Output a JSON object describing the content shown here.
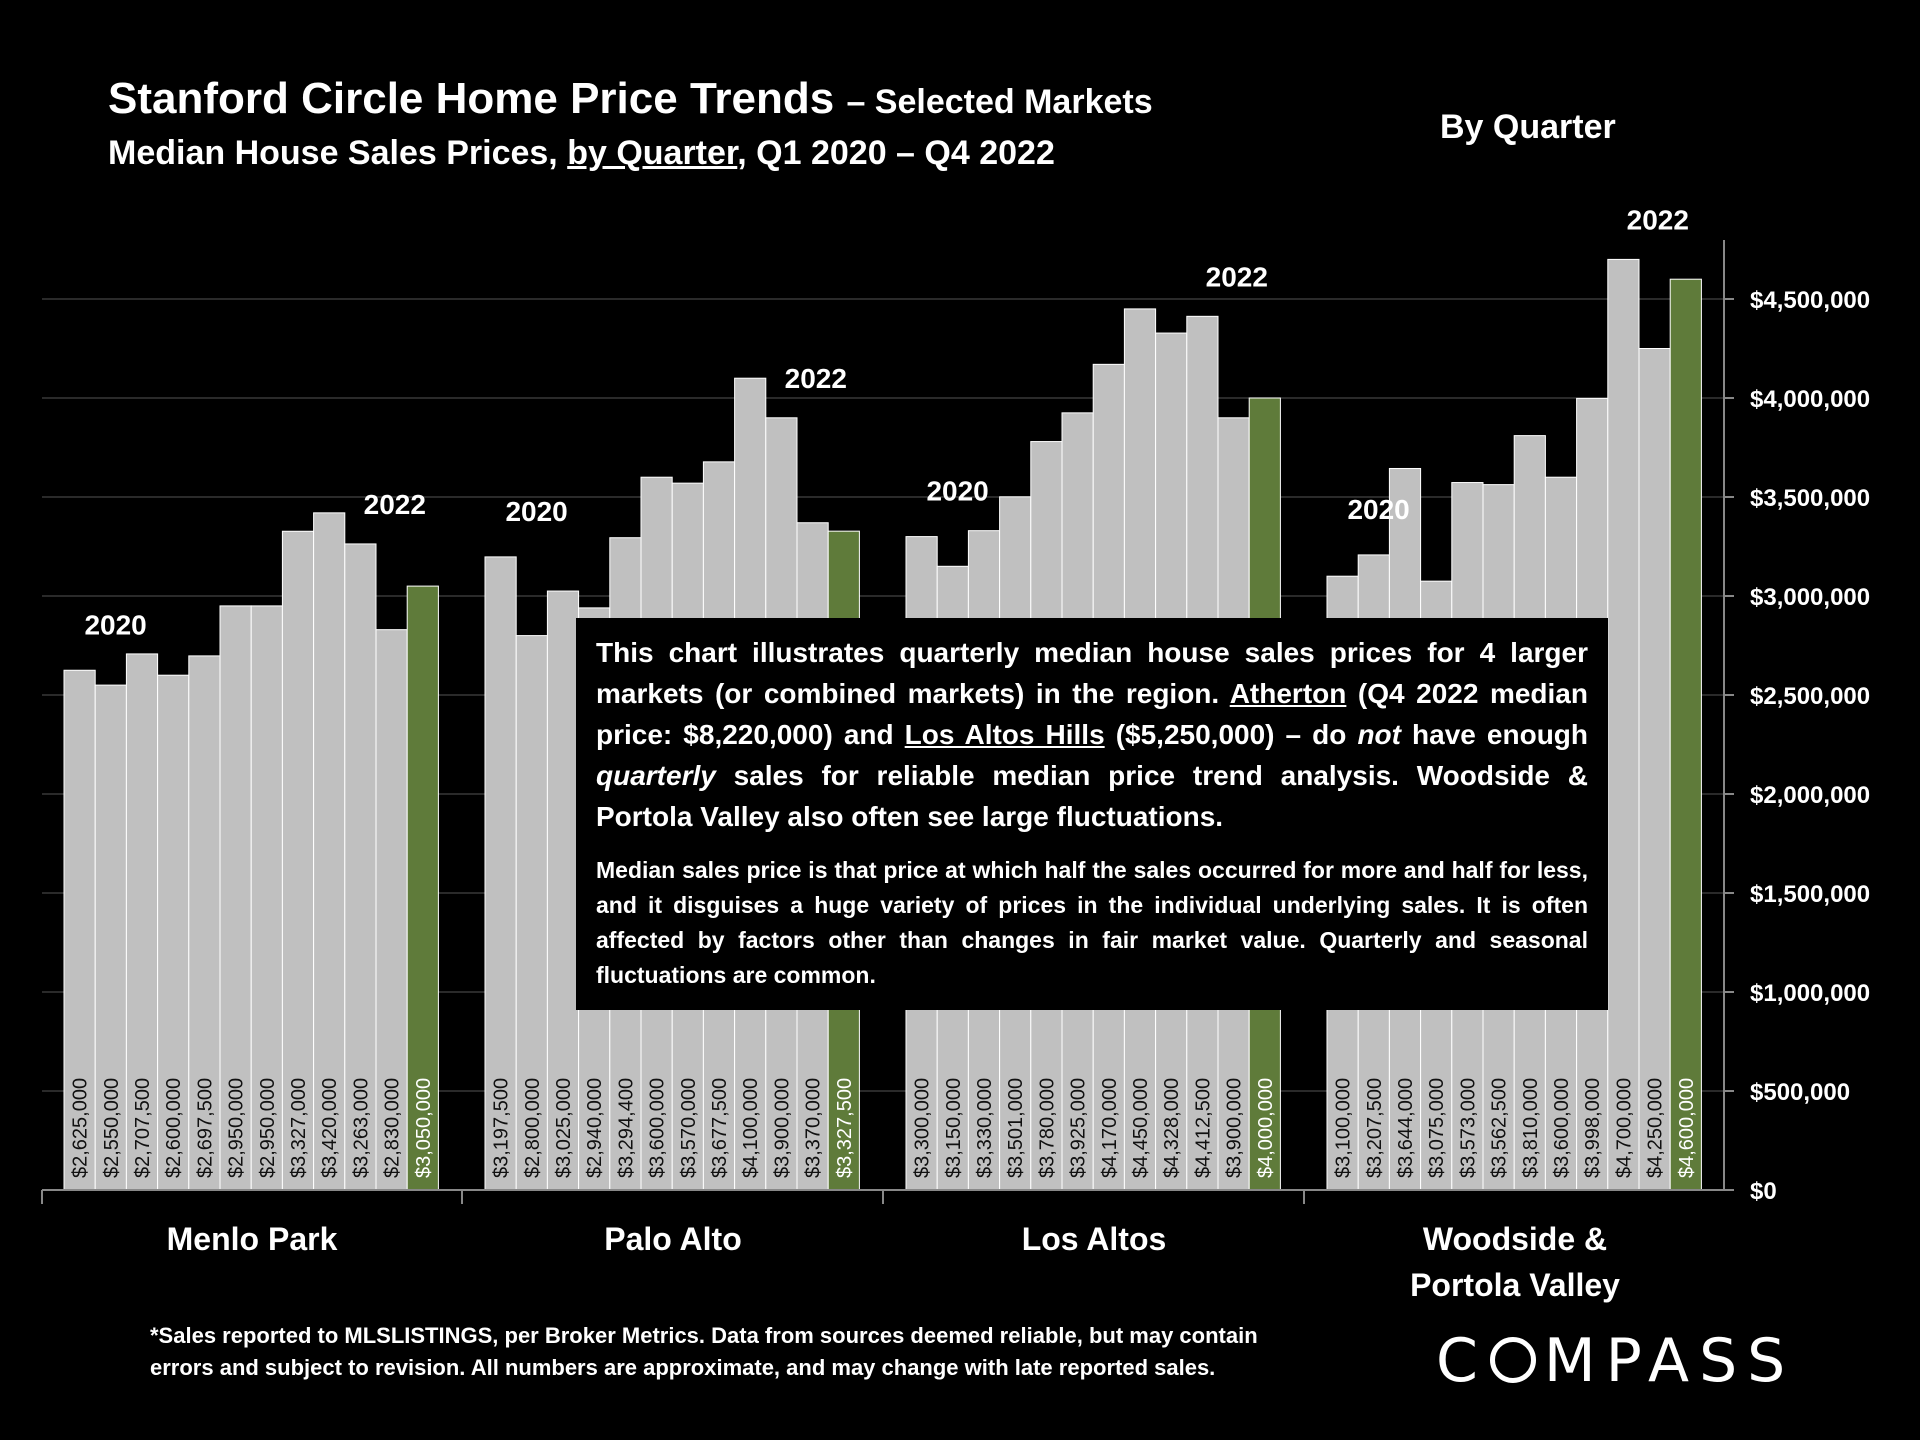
{
  "header": {
    "title_main": "Stanford Circle Home Price Trends",
    "title_suffix": "– Selected Markets",
    "subtitle_pre": "Median House Sales Prices, ",
    "subtitle_link": "by Quarter",
    "subtitle_post": ", Q1 2020 – Q4 2022",
    "by_quarter": "By Quarter"
  },
  "colors": {
    "bar": "#c0c0c0",
    "highlight": "#5f7b3a",
    "background": "#000000",
    "grid": "#444444"
  },
  "chart_data": {
    "type": "bar",
    "yticks": [
      "$0",
      "$500,000",
      "$1,000,000",
      "$1,500,000",
      "$2,000,000",
      "$2,500,000",
      "$3,000,000",
      "$3,500,000",
      "$4,000,000",
      "$4,500,000"
    ],
    "ylim": [
      0,
      4800000
    ],
    "grid": true,
    "groups": [
      {
        "name": "Menlo Park",
        "start_label": "2020",
        "end_label": "2022",
        "values": [
          2625000,
          2550000,
          2707500,
          2600000,
          2697500,
          2950000,
          2950000,
          3327000,
          3420000,
          3263000,
          2830000,
          3050000
        ],
        "labels": [
          "$2,625,000",
          "$2,550,000",
          "$2,707,500",
          "$2,600,000",
          "$2,697,500",
          "$2,950,000",
          "$2,950,000",
          "$3,327,000",
          "$3,420,000",
          "$3,263,000",
          "$2,830,000",
          "$3,050,000"
        ]
      },
      {
        "name": "Palo Alto",
        "start_label": "2020",
        "end_label": "2022",
        "values": [
          3197500,
          2800000,
          3025000,
          2940000,
          3294400,
          3600000,
          3570000,
          3677500,
          4100000,
          3900000,
          3370000,
          3327500
        ],
        "labels": [
          "$3,197,500",
          "$2,800,000",
          "$3,025,000",
          "$2,940,000",
          "$3,294,400",
          "$3,600,000",
          "$3,570,000",
          "$3,677,500",
          "$4,100,000",
          "$3,900,000",
          "$3,370,000",
          "$3,327,500"
        ]
      },
      {
        "name": "Los Altos",
        "start_label": "2020",
        "end_label": "2022",
        "values": [
          3300000,
          3150000,
          3330000,
          3501000,
          3780000,
          3925000,
          4170000,
          4450000,
          4328000,
          4412500,
          3900000,
          4000000
        ],
        "labels": [
          "$3,300,000",
          "$3,150,000",
          "$3,330,000",
          "$3,501,000",
          "$3,780,000",
          "$3,925,000",
          "$4,170,000",
          "$4,450,000",
          "$4,328,000",
          "$4,412,500",
          "$3,900,000",
          "$4,000,000"
        ]
      },
      {
        "name": "Woodside &\nPortola Valley",
        "start_label": "2020",
        "end_label": "2022",
        "values": [
          3100000,
          3207500,
          3644000,
          3075000,
          3573000,
          3562500,
          3810000,
          3600000,
          3998000,
          4700000,
          4250000,
          4600000
        ],
        "labels": [
          "$3,100,000",
          "$3,207,500",
          "$3,644,000",
          "$3,075,000",
          "$3,573,000",
          "$3,562,500",
          "$3,810,000",
          "$3,600,000",
          "$3,998,000",
          "$4,700,000",
          "$4,250,000",
          "$4,600,000"
        ]
      }
    ]
  },
  "overlay": {
    "p1_a": "This chart illustrates quarterly median house sales prices for 4 larger markets (or combined markets) in the region. ",
    "p1_atherton": "Atherton",
    "p1_b": " (Q4 2022 median price: $8,220,000) and ",
    "p1_lah": "Los Altos Hills",
    "p1_c": " ($5,250,000) – do ",
    "p1_not": "not",
    "p1_d": " have enough ",
    "p1_quarterly": "quarterly",
    "p1_e": " sales for reliable median price trend analysis. Woodside & Portola Valley also often see large fluctuations.",
    "p2": "Median sales price is that price at which half the sales occurred for more and half for less, and it disguises a huge variety of prices in the individual underlying sales. It is often affected by factors other than changes in fair market value. Quarterly and seasonal fluctuations are common."
  },
  "footer": {
    "line1": "*Sales reported to MLSLISTINGS, per Broker Metrics. Data from sources deemed reliable, but may contain",
    "line2": "errors and subject to revision. All numbers are approximate, and may change with late reported sales."
  },
  "logo": {
    "pre": "C",
    "post": "MPASS"
  }
}
